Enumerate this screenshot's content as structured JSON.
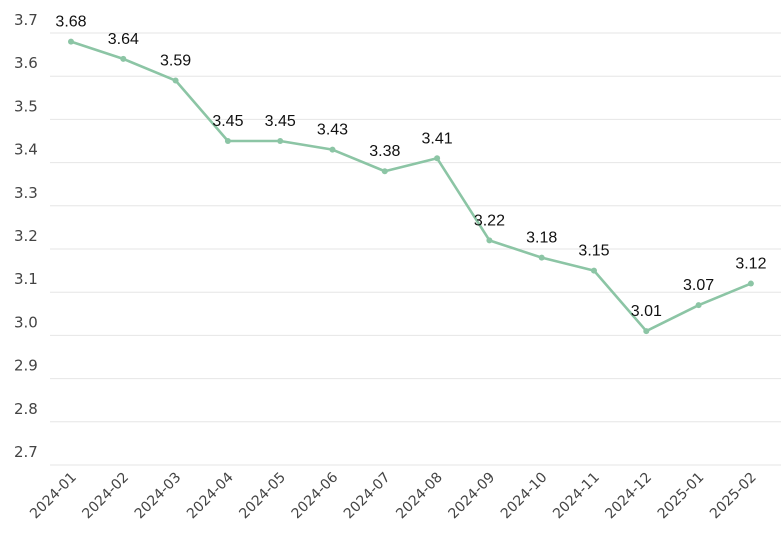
{
  "chart_data": {
    "type": "line",
    "title": "",
    "xlabel": "",
    "ylabel": "",
    "categories": [
      "2024-01",
      "2024-02",
      "2024-03",
      "2024-04",
      "2024-05",
      "2024-06",
      "2024-07",
      "2024-08",
      "2024-09",
      "2024-10",
      "2024-11",
      "2024-12",
      "2025-01",
      "2025-02"
    ],
    "series": [
      {
        "values": [
          3.68,
          3.64,
          3.59,
          3.45,
          3.45,
          3.43,
          3.38,
          3.41,
          3.22,
          3.18,
          3.15,
          3.01,
          3.07,
          3.12
        ],
        "data_labels": [
          "3.68",
          "3.64",
          "3.59",
          "3.45",
          "3.45",
          "3.43",
          "3.38",
          "3.41",
          "3.22",
          "3.18",
          "3.15",
          "3.01",
          "3.07",
          "3.12"
        ]
      }
    ],
    "y_ticks": [
      "2.7",
      "2.8",
      "2.9",
      "3.0",
      "3.1",
      "3.2",
      "3.3",
      "3.4",
      "3.5",
      "3.6",
      "3.7"
    ],
    "ylim": [
      2.7,
      3.7
    ],
    "grid": true,
    "legend": "none",
    "colors": {
      "line": "#8cc5a5",
      "grid": "#e6e6e6"
    }
  }
}
